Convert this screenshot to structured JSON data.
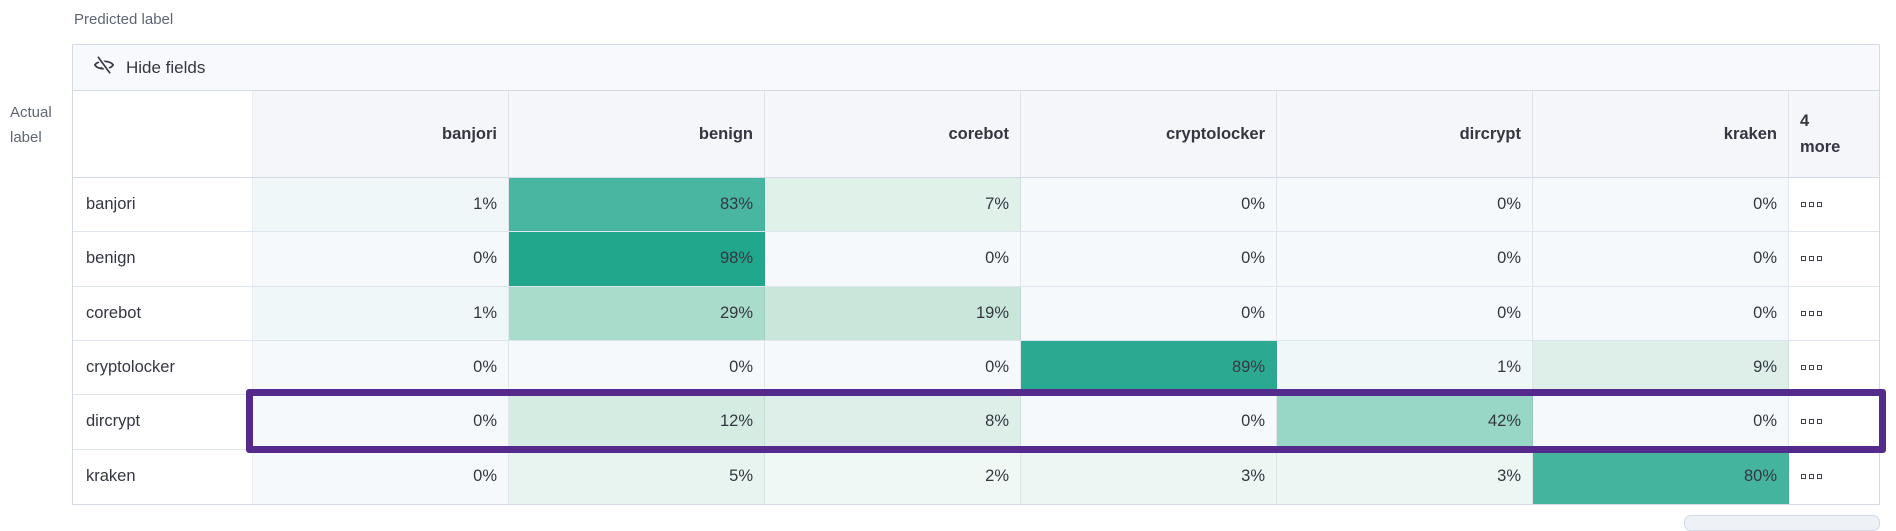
{
  "page": {
    "predicted_label": "Predicted label",
    "actual_label_line1": "Actual",
    "actual_label_line2": "label"
  },
  "toolbar": {
    "hide_fields_label": "Hide fields",
    "icon": "eye-closed-icon"
  },
  "matrix": {
    "columns": [
      "banjori",
      "benign",
      "corebot",
      "cryptolocker",
      "dircrypt",
      "kraken"
    ],
    "more_header_line1": "4",
    "more_header_line2": "more",
    "more_icon": "boxes-horizontal-icon",
    "rows": [
      {
        "label": "banjori",
        "cells": [
          {
            "value": "1%",
            "color": "#eff7f9"
          },
          {
            "value": "83%",
            "color": "#48b6a1"
          },
          {
            "value": "7%",
            "color": "#e0f1ea"
          },
          {
            "value": "0%",
            "color": "#f6f9fc"
          },
          {
            "value": "0%",
            "color": "#f6f9fc"
          },
          {
            "value": "0%",
            "color": "#f6f9fc"
          }
        ]
      },
      {
        "label": "benign",
        "cells": [
          {
            "value": "0%",
            "color": "#f6f9fc"
          },
          {
            "value": "98%",
            "color": "#21a78c"
          },
          {
            "value": "0%",
            "color": "#f6f9fc"
          },
          {
            "value": "0%",
            "color": "#f6f9fc"
          },
          {
            "value": "0%",
            "color": "#f6f9fc"
          },
          {
            "value": "0%",
            "color": "#f6f9fc"
          }
        ]
      },
      {
        "label": "corebot",
        "cells": [
          {
            "value": "1%",
            "color": "#eff7f9"
          },
          {
            "value": "29%",
            "color": "#a9dccb"
          },
          {
            "value": "19%",
            "color": "#c8e6da"
          },
          {
            "value": "0%",
            "color": "#f6f9fc"
          },
          {
            "value": "0%",
            "color": "#f6f9fc"
          },
          {
            "value": "0%",
            "color": "#f6f9fc"
          }
        ]
      },
      {
        "label": "cryptolocker",
        "cells": [
          {
            "value": "0%",
            "color": "#f6f9fc"
          },
          {
            "value": "0%",
            "color": "#f6f9fc"
          },
          {
            "value": "0%",
            "color": "#f6f9fc"
          },
          {
            "value": "89%",
            "color": "#2caa91"
          },
          {
            "value": "1%",
            "color": "#eff7f9"
          },
          {
            "value": "9%",
            "color": "#deefe9"
          }
        ]
      },
      {
        "label": "dircrypt",
        "cells": [
          {
            "value": "0%",
            "color": "#f6f9fc"
          },
          {
            "value": "12%",
            "color": "#d5ece3"
          },
          {
            "value": "8%",
            "color": "#ddefe8"
          },
          {
            "value": "0%",
            "color": "#f6f9fc"
          },
          {
            "value": "42%",
            "color": "#98d7c5"
          },
          {
            "value": "0%",
            "color": "#f6f9fc"
          }
        ]
      },
      {
        "label": "kraken",
        "cells": [
          {
            "value": "0%",
            "color": "#f6f9fc"
          },
          {
            "value": "5%",
            "color": "#e8f4ef"
          },
          {
            "value": "2%",
            "color": "#f0f8f6"
          },
          {
            "value": "3%",
            "color": "#ecf6f2"
          },
          {
            "value": "3%",
            "color": "#ecf6f2"
          },
          {
            "value": "80%",
            "color": "#45b49f"
          }
        ]
      }
    ]
  },
  "highlight": {
    "row_label": "dircrypt",
    "border_color": "#542b8c"
  }
}
